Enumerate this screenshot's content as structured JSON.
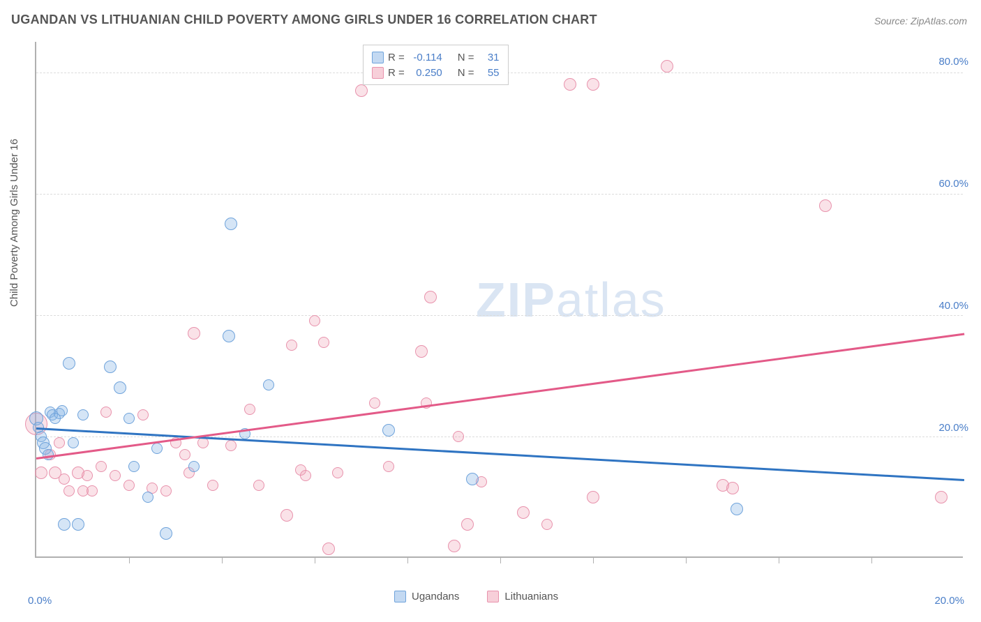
{
  "title": "UGANDAN VS LITHUANIAN CHILD POVERTY AMONG GIRLS UNDER 16 CORRELATION CHART",
  "source": "Source: ZipAtlas.com",
  "y_axis_label": "Child Poverty Among Girls Under 16",
  "watermark_bold": "ZIP",
  "watermark_thin": "atlas",
  "chart": {
    "type": "scatter",
    "background_color": "#ffffff",
    "grid_color": "#dcdcdc",
    "axis_color": "#b0b0b0",
    "x_domain": [
      0,
      20
    ],
    "y_domain": [
      0,
      85
    ],
    "y_ticks": [
      20,
      40,
      60,
      80
    ],
    "y_tick_labels": [
      "20.0%",
      "40.0%",
      "60.0%",
      "80.0%"
    ],
    "x_axis_left_label": "0.0%",
    "x_axis_right_label": "20.0%",
    "x_tick_positions": [
      2,
      4,
      6,
      8,
      10,
      12,
      14,
      16,
      18
    ],
    "tick_label_color": "#4a7ec8",
    "axis_label_color": "#555555",
    "title_color": "#555555",
    "title_fontsize": 18,
    "label_fontsize": 15
  },
  "legend_top": {
    "rows": [
      {
        "swatch": "blue",
        "r_label": "R =",
        "r_value": "-0.114",
        "n_label": "N =",
        "n_value": "31"
      },
      {
        "swatch": "pink",
        "r_label": "R =",
        "r_value": "0.250",
        "n_label": "N =",
        "n_value": "55"
      }
    ]
  },
  "legend_bottom": {
    "items": [
      {
        "swatch": "blue",
        "label": "Ugandans"
      },
      {
        "swatch": "pink",
        "label": "Lithuanians"
      }
    ]
  },
  "series": {
    "blue": {
      "color_fill": "rgba(135,180,230,0.35)",
      "color_stroke": "#6fa3db",
      "trend_color": "#2f74c2",
      "trend": {
        "x1": 0,
        "y1": 21.5,
        "x2": 20,
        "y2": 13.0
      },
      "marker_radius": 8,
      "points": [
        {
          "x": 0.0,
          "y": 23,
          "r": 10
        },
        {
          "x": 0.1,
          "y": 20,
          "r": 8
        },
        {
          "x": 0.15,
          "y": 19,
          "r": 9
        },
        {
          "x": 0.2,
          "y": 18,
          "r": 9
        },
        {
          "x": 0.25,
          "y": 17,
          "r": 8
        },
        {
          "x": 0.3,
          "y": 24,
          "r": 8
        },
        {
          "x": 0.35,
          "y": 23.5,
          "r": 8
        },
        {
          "x": 0.5,
          "y": 23.8,
          "r": 8
        },
        {
          "x": 0.55,
          "y": 24.2,
          "r": 8
        },
        {
          "x": 0.7,
          "y": 32,
          "r": 9
        },
        {
          "x": 0.6,
          "y": 5.5,
          "r": 9
        },
        {
          "x": 0.9,
          "y": 5.5,
          "r": 9
        },
        {
          "x": 0.8,
          "y": 19,
          "r": 8
        },
        {
          "x": 1.0,
          "y": 23.5,
          "r": 8
        },
        {
          "x": 1.6,
          "y": 31.5,
          "r": 9
        },
        {
          "x": 1.8,
          "y": 28,
          "r": 9
        },
        {
          "x": 2.0,
          "y": 23,
          "r": 8
        },
        {
          "x": 2.1,
          "y": 15,
          "r": 8
        },
        {
          "x": 2.4,
          "y": 10,
          "r": 8
        },
        {
          "x": 2.6,
          "y": 18,
          "r": 8
        },
        {
          "x": 2.8,
          "y": 4,
          "r": 9
        },
        {
          "x": 3.4,
          "y": 15,
          "r": 8
        },
        {
          "x": 4.15,
          "y": 36.5,
          "r": 9
        },
        {
          "x": 4.2,
          "y": 55,
          "r": 9
        },
        {
          "x": 4.5,
          "y": 20.5,
          "r": 8
        },
        {
          "x": 5.0,
          "y": 28.5,
          "r": 8
        },
        {
          "x": 7.6,
          "y": 21,
          "r": 9
        },
        {
          "x": 9.4,
          "y": 13,
          "r": 9
        },
        {
          "x": 15.1,
          "y": 8,
          "r": 9
        },
        {
          "x": 0.05,
          "y": 21.5,
          "r": 8
        },
        {
          "x": 0.4,
          "y": 23,
          "r": 8
        }
      ]
    },
    "pink": {
      "color_fill": "rgba(240,160,180,0.3)",
      "color_stroke": "#e892ac",
      "trend_color": "#e35a88",
      "trend": {
        "x1": 0,
        "y1": 16.5,
        "x2": 20,
        "y2": 37.0
      },
      "marker_radius": 8,
      "points": [
        {
          "x": 0.0,
          "y": 22,
          "r": 16
        },
        {
          "x": 0.1,
          "y": 14,
          "r": 9
        },
        {
          "x": 0.3,
          "y": 17,
          "r": 8
        },
        {
          "x": 0.4,
          "y": 14,
          "r": 9
        },
        {
          "x": 0.5,
          "y": 19,
          "r": 8
        },
        {
          "x": 0.6,
          "y": 13,
          "r": 8
        },
        {
          "x": 0.7,
          "y": 11,
          "r": 8
        },
        {
          "x": 0.9,
          "y": 14,
          "r": 9
        },
        {
          "x": 1.0,
          "y": 11,
          "r": 8
        },
        {
          "x": 1.1,
          "y": 13.5,
          "r": 8
        },
        {
          "x": 1.2,
          "y": 11,
          "r": 8
        },
        {
          "x": 1.4,
          "y": 15,
          "r": 8
        },
        {
          "x": 1.5,
          "y": 24,
          "r": 8
        },
        {
          "x": 1.7,
          "y": 13.5,
          "r": 8
        },
        {
          "x": 2.0,
          "y": 12,
          "r": 8
        },
        {
          "x": 2.3,
          "y": 23.5,
          "r": 8
        },
        {
          "x": 2.5,
          "y": 11.5,
          "r": 8
        },
        {
          "x": 2.8,
          "y": 11,
          "r": 8
        },
        {
          "x": 3.0,
          "y": 19,
          "r": 8
        },
        {
          "x": 3.2,
          "y": 17,
          "r": 8
        },
        {
          "x": 3.3,
          "y": 14,
          "r": 8
        },
        {
          "x": 3.4,
          "y": 37,
          "r": 9
        },
        {
          "x": 3.6,
          "y": 19,
          "r": 8
        },
        {
          "x": 3.8,
          "y": 12,
          "r": 8
        },
        {
          "x": 4.2,
          "y": 18.5,
          "r": 8
        },
        {
          "x": 4.6,
          "y": 24.5,
          "r": 8
        },
        {
          "x": 4.8,
          "y": 12,
          "r": 8
        },
        {
          "x": 5.4,
          "y": 7,
          "r": 9
        },
        {
          "x": 5.5,
          "y": 35,
          "r": 8
        },
        {
          "x": 5.7,
          "y": 14.5,
          "r": 8
        },
        {
          "x": 5.8,
          "y": 13.5,
          "r": 8
        },
        {
          "x": 6.0,
          "y": 39,
          "r": 8
        },
        {
          "x": 6.2,
          "y": 35.5,
          "r": 8
        },
        {
          "x": 6.3,
          "y": 1.5,
          "r": 9
        },
        {
          "x": 6.5,
          "y": 14,
          "r": 8
        },
        {
          "x": 7.0,
          "y": 77,
          "r": 9
        },
        {
          "x": 7.3,
          "y": 25.5,
          "r": 8
        },
        {
          "x": 7.6,
          "y": 15,
          "r": 8
        },
        {
          "x": 8.3,
          "y": 34,
          "r": 9
        },
        {
          "x": 8.4,
          "y": 25.5,
          "r": 8
        },
        {
          "x": 8.5,
          "y": 43,
          "r": 9
        },
        {
          "x": 9.0,
          "y": 2,
          "r": 9
        },
        {
          "x": 9.1,
          "y": 20,
          "r": 8
        },
        {
          "x": 9.3,
          "y": 5.5,
          "r": 9
        },
        {
          "x": 9.6,
          "y": 12.5,
          "r": 8
        },
        {
          "x": 10.5,
          "y": 7.5,
          "r": 9
        },
        {
          "x": 11.0,
          "y": 5.5,
          "r": 8
        },
        {
          "x": 11.5,
          "y": 78,
          "r": 9
        },
        {
          "x": 12.0,
          "y": 10,
          "r": 9
        },
        {
          "x": 12.0,
          "y": 78,
          "r": 9
        },
        {
          "x": 13.6,
          "y": 81,
          "r": 9
        },
        {
          "x": 14.8,
          "y": 12,
          "r": 9
        },
        {
          "x": 15.0,
          "y": 11.5,
          "r": 9
        },
        {
          "x": 17.0,
          "y": 58,
          "r": 9
        },
        {
          "x": 19.5,
          "y": 10,
          "r": 9
        }
      ]
    }
  }
}
